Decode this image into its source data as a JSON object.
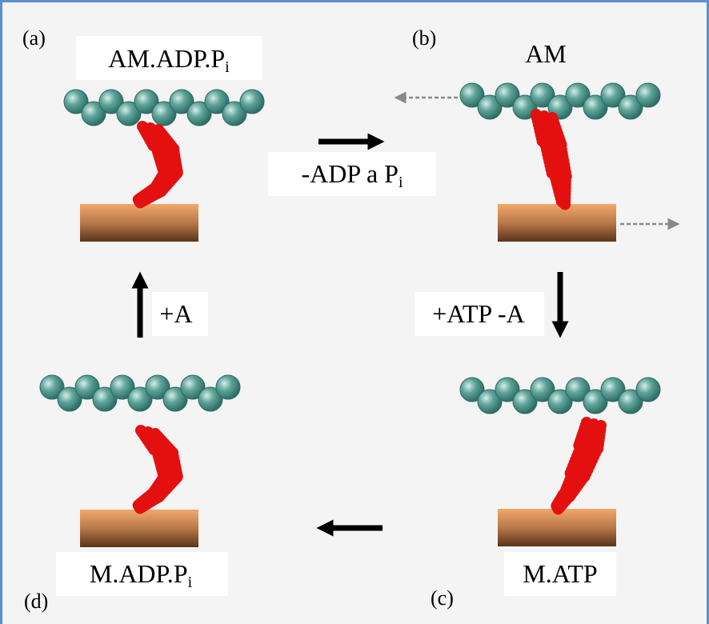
{
  "panels": [
    {
      "tag": "(a)",
      "label": {
        "text": "AM.ADP.P",
        "subscript": "i"
      }
    },
    {
      "tag": "(b)",
      "label": {
        "text": "AM"
      }
    },
    {
      "tag": "(c)",
      "label": {
        "text": "M.ATP"
      }
    },
    {
      "tag": "(d)",
      "label": {
        "text": "M.ADP.P",
        "subscript": "i"
      }
    }
  ],
  "transitions": [
    {
      "text": "-ADP a P",
      "subscript": "i"
    },
    {
      "text": "+ATP -A"
    },
    {
      "text": "+A"
    }
  ]
}
